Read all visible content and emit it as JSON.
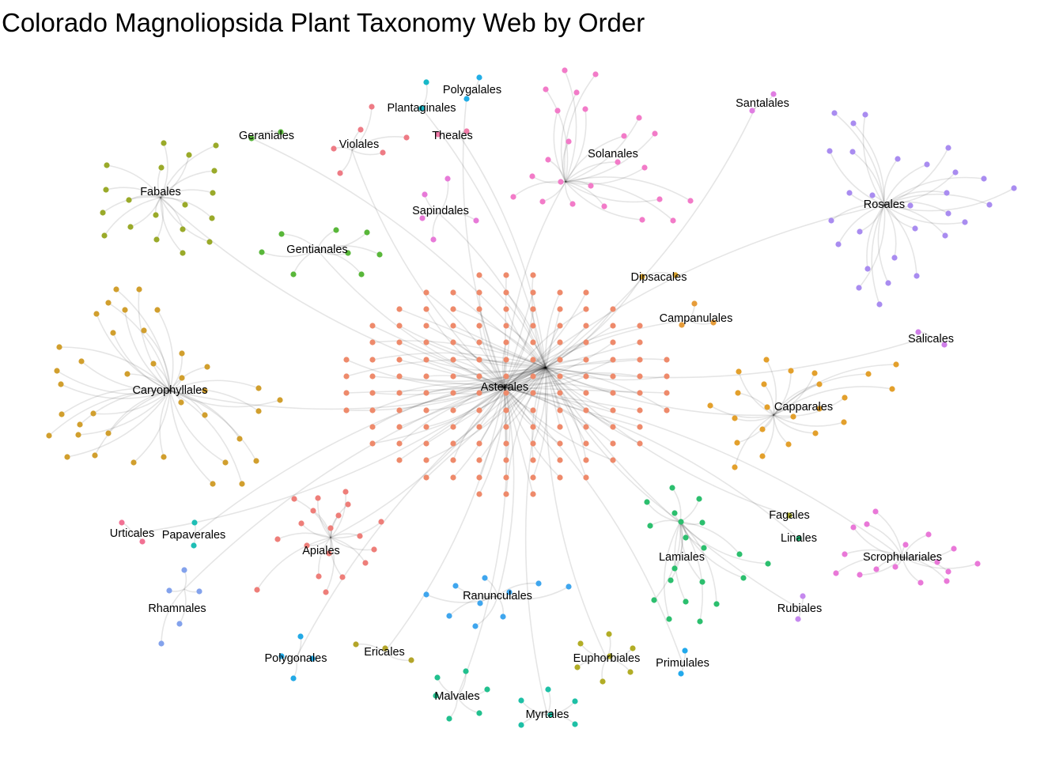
{
  "title": "Colorado Magnoliopsida Plant Taxonomy Web by Order",
  "hub": "Asterales",
  "orders": [
    {
      "name": "Asterales",
      "color": "#EE8A6B"
    },
    {
      "name": "Fabales",
      "color": "#9AAA2A"
    },
    {
      "name": "Geraniales",
      "color": "#58B43A"
    },
    {
      "name": "Violales",
      "color": "#EE7B85"
    },
    {
      "name": "Plantaginales",
      "color": "#18B8C8"
    },
    {
      "name": "Polygalales",
      "color": "#22AEE6"
    },
    {
      "name": "Theales",
      "color": "#F07AA8"
    },
    {
      "name": "Solanales",
      "color": "#F27BC8"
    },
    {
      "name": "Santalales",
      "color": "#E07EE2"
    },
    {
      "name": "Rosales",
      "color": "#A98CF0"
    },
    {
      "name": "Sapindales",
      "color": "#E77AD8"
    },
    {
      "name": "Gentianales",
      "color": "#59B73A"
    },
    {
      "name": "Dipsacales",
      "color": "#D7A12A"
    },
    {
      "name": "Campanulales",
      "color": "#E69C3A"
    },
    {
      "name": "Salicales",
      "color": "#CF7EE8"
    },
    {
      "name": "Caryophyllales",
      "color": "#D19F2E"
    },
    {
      "name": "Capparales",
      "color": "#E3A02C"
    },
    {
      "name": "Urticales",
      "color": "#F17193"
    },
    {
      "name": "Papaverales",
      "color": "#1FBEB5"
    },
    {
      "name": "Apiales",
      "color": "#EE7E79"
    },
    {
      "name": "Fagales",
      "color": "#A7AA2A"
    },
    {
      "name": "Linales",
      "color": "#23B876"
    },
    {
      "name": "Lamiales",
      "color": "#2CBF6E"
    },
    {
      "name": "Scrophulariales",
      "color": "#E978D8"
    },
    {
      "name": "Rhamnales",
      "color": "#83A2EC"
    },
    {
      "name": "Ranunculales",
      "color": "#3FA6EE"
    },
    {
      "name": "Polygonales",
      "color": "#22A9E6"
    },
    {
      "name": "Ericales",
      "color": "#B3A52A"
    },
    {
      "name": "Euphorbiales",
      "color": "#B2AD26"
    },
    {
      "name": "Primulales",
      "color": "#22A9EC"
    },
    {
      "name": "Rubiales",
      "color": "#C588EE"
    },
    {
      "name": "Malvales",
      "color": "#22C08E"
    },
    {
      "name": "Myrtales",
      "color": "#1EC0A6"
    }
  ]
}
